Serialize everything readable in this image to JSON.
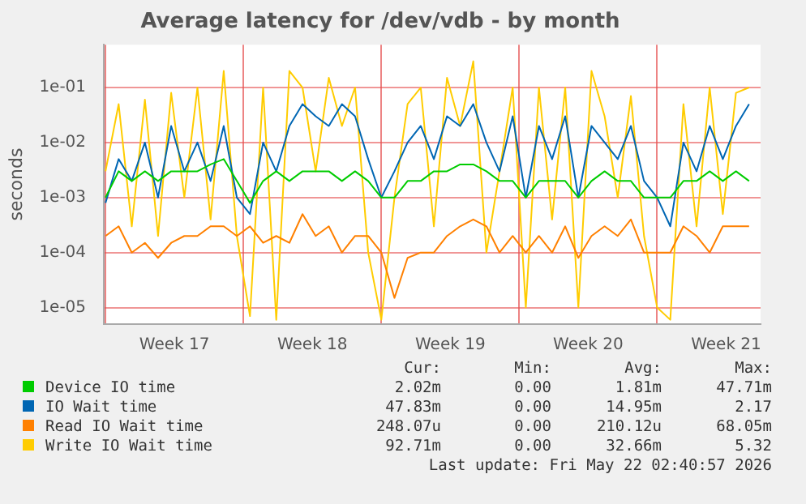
{
  "chart_data": {
    "type": "line",
    "title": "Average latency for /dev/vdb - by month",
    "ylabel": "seconds",
    "x": [
      "2026-04-19T00:00",
      "2026-04-19T16:00",
      "2026-04-20T08:00",
      "2026-04-21T00:00",
      "2026-04-21T16:00",
      "2026-04-22T08:00",
      "2026-04-23T00:00",
      "2026-04-23T16:00",
      "2026-04-24T08:00",
      "2026-04-25T00:00",
      "2026-04-25T16:00",
      "2026-04-26T08:00",
      "2026-04-27T00:00",
      "2026-04-27T16:00",
      "2026-04-28T08:00",
      "2026-04-29T00:00",
      "2026-04-29T16:00",
      "2026-04-30T08:00",
      "2026-05-01T00:00",
      "2026-05-01T16:00",
      "2026-05-02T08:00",
      "2026-05-03T00:00",
      "2026-05-03T16:00",
      "2026-05-04T08:00",
      "2026-05-05T00:00",
      "2026-05-05T16:00",
      "2026-05-06T08:00",
      "2026-05-07T00:00",
      "2026-05-07T16:00",
      "2026-05-08T08:00",
      "2026-05-09T00:00",
      "2026-05-09T16:00",
      "2026-05-10T08:00",
      "2026-05-11T00:00",
      "2026-05-11T16:00",
      "2026-05-12T08:00",
      "2026-05-13T00:00",
      "2026-05-13T16:00",
      "2026-05-14T08:00",
      "2026-05-15T00:00",
      "2026-05-15T16:00",
      "2026-05-16T08:00",
      "2026-05-17T00:00",
      "2026-05-17T16:00",
      "2026-05-18T08:00",
      "2026-05-19T00:00",
      "2026-05-19T16:00",
      "2026-05-20T08:00",
      "2026-05-21T00:00",
      "2026-05-21T16:00"
    ],
    "series": [
      {
        "name": "Device IO time",
        "color": "#00cc00",
        "values": [
          0.001,
          0.003,
          0.002,
          0.003,
          0.002,
          0.003,
          0.003,
          0.003,
          0.004,
          0.005,
          0.002,
          0.0008,
          0.002,
          0.003,
          0.002,
          0.003,
          0.003,
          0.003,
          0.002,
          0.003,
          0.002,
          0.001,
          0.001,
          0.002,
          0.002,
          0.003,
          0.003,
          0.004,
          0.004,
          0.003,
          0.002,
          0.002,
          0.001,
          0.002,
          0.002,
          0.002,
          0.001,
          0.002,
          0.003,
          0.002,
          0.002,
          0.001,
          0.001,
          0.001,
          0.002,
          0.002,
          0.003,
          0.002,
          0.003,
          0.002
        ]
      },
      {
        "name": "IO Wait time",
        "color": "#0066b3",
        "values": [
          0.0008,
          0.005,
          0.002,
          0.01,
          0.001,
          0.02,
          0.003,
          0.01,
          0.002,
          0.02,
          0.001,
          0.0005,
          0.01,
          0.003,
          0.02,
          0.05,
          0.03,
          0.02,
          0.05,
          0.03,
          0.005,
          0.001,
          0.003,
          0.01,
          0.02,
          0.005,
          0.03,
          0.02,
          0.05,
          0.01,
          0.003,
          0.03,
          0.001,
          0.02,
          0.005,
          0.03,
          0.001,
          0.02,
          0.01,
          0.005,
          0.02,
          0.002,
          0.001,
          0.0003,
          0.01,
          0.003,
          0.02,
          0.005,
          0.02,
          0.05
        ]
      },
      {
        "name": "Read IO Wait time",
        "color": "#ff8000",
        "values": [
          0.0002,
          0.0003,
          0.0001,
          0.00015,
          8e-05,
          0.00015,
          0.0002,
          0.0002,
          0.0003,
          0.0003,
          0.0002,
          0.0003,
          0.00015,
          0.0002,
          0.00015,
          0.0005,
          0.0002,
          0.0003,
          0.0001,
          0.0002,
          0.0002,
          0.0001,
          1.5e-05,
          8e-05,
          0.0001,
          0.0001,
          0.0002,
          0.0003,
          0.0004,
          0.0003,
          0.0001,
          0.0002,
          0.0001,
          0.0002,
          0.0001,
          0.0003,
          8e-05,
          0.0002,
          0.0003,
          0.0002,
          0.0004,
          0.0001,
          0.0001,
          0.0001,
          0.0003,
          0.0002,
          0.0001,
          0.0003,
          0.0003,
          0.0003
        ]
      },
      {
        "name": "Write IO Wait time",
        "color": "#ffcc00",
        "values": [
          0.003,
          0.05,
          0.0003,
          0.06,
          0.0002,
          0.08,
          0.001,
          0.1,
          0.0004,
          0.2,
          0.0002,
          7e-06,
          0.1,
          6e-06,
          0.2,
          0.1,
          0.003,
          0.15,
          0.02,
          0.1,
          0.0001,
          6e-06,
          0.001,
          0.05,
          0.1,
          0.0003,
          0.15,
          0.02,
          0.3,
          0.0001,
          0.003,
          0.1,
          1e-05,
          0.1,
          0.0004,
          0.1,
          1e-05,
          0.2,
          0.03,
          0.001,
          0.07,
          0.0002,
          1e-05,
          6e-06,
          0.05,
          0.0003,
          0.1,
          0.0005,
          0.08,
          0.1
        ]
      }
    ],
    "xlim": [
      "2026-04-18T22:00",
      "2026-05-22T06:00"
    ],
    "xticks": [
      {
        "value": "2026-04-19T00:00",
        "label": null
      },
      {
        "value": "2026-04-22T12:00",
        "label": "Week 17"
      },
      {
        "value": "2026-04-26T00:00",
        "label": null
      },
      {
        "value": "2026-04-29T12:00",
        "label": "Week 18"
      },
      {
        "value": "2026-05-03T00:00",
        "label": null
      },
      {
        "value": "2026-05-06T12:00",
        "label": "Week 19"
      },
      {
        "value": "2026-05-10T00:00",
        "label": null
      },
      {
        "value": "2026-05-13T12:00",
        "label": "Week 20"
      },
      {
        "value": "2026-05-17T00:00",
        "label": null
      },
      {
        "value": "2026-05-20T12:00",
        "label": "Week 21"
      }
    ],
    "ylim": [
      5e-06,
      0.6
    ],
    "yticks": [
      {
        "value": 1e-05,
        "label": "1e-05"
      },
      {
        "value": 0.0001,
        "label": "1e-04"
      },
      {
        "value": 0.001,
        "label": "1e-03"
      },
      {
        "value": 0.01,
        "label": "1e-02"
      },
      {
        "value": 0.1,
        "label": "1e-01"
      }
    ],
    "log": "y",
    "grid": true,
    "legend": "bottom",
    "marker": "none",
    "line_style": "solid",
    "annotations": [
      "Cur:",
      "Min:",
      "Avg:",
      "Max:",
      "2.02m",
      "0.00",
      "1.81m",
      "47.71m",
      "47.83m",
      "0.00",
      "14.95m",
      "2.17",
      "248.07u",
      "0.00",
      "210.12u",
      "68.05m",
      "92.71m",
      "0.00",
      "32.66m",
      "5.32",
      "Last update: Fri May 22 02:40:57 2026"
    ]
  }
}
